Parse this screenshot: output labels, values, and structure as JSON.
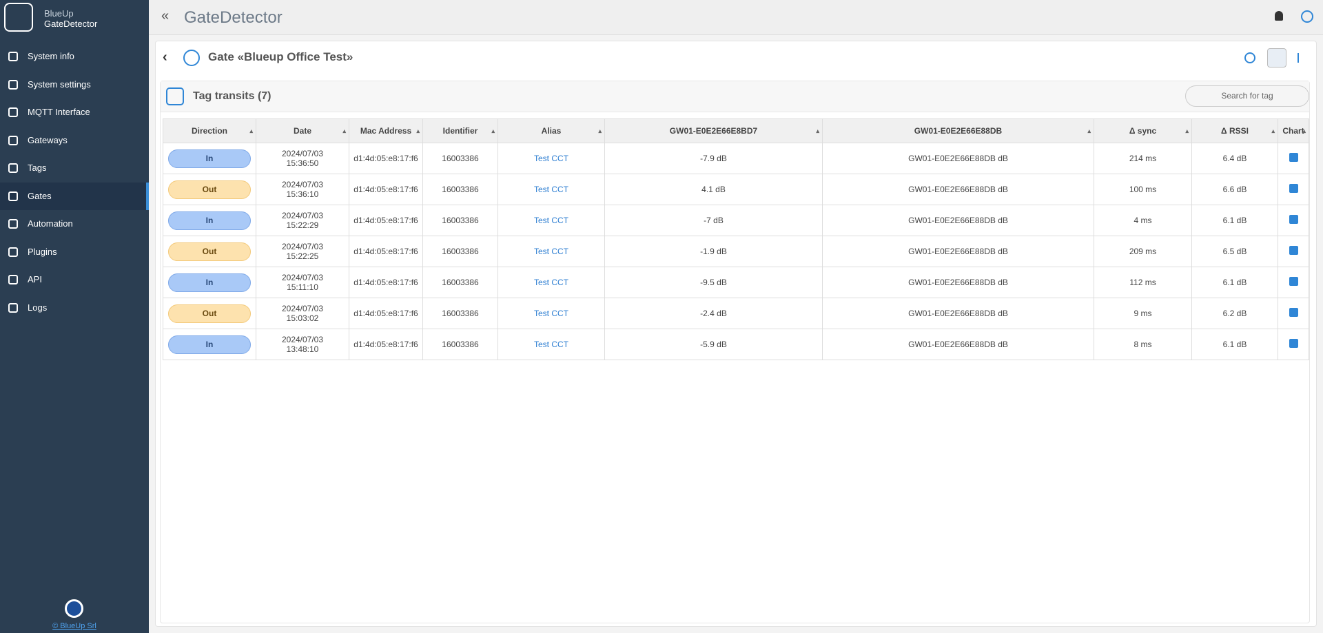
{
  "brand": {
    "line1": "BlueUp",
    "line2": "GateDetector"
  },
  "nav": [
    "System info",
    "System settings",
    "MQTT Interface",
    "Gateways",
    "Tags",
    "Gates",
    "Automation",
    "Plugins",
    "API",
    "Logs"
  ],
  "nav_active": 5,
  "header": {
    "title": "GateDetector"
  },
  "gate": {
    "title": "Gate «Blueup Office Test»"
  },
  "section": {
    "title": "Tag transits (7)",
    "search_placeholder": "Search for tag"
  },
  "table": {
    "columns": [
      "Direction",
      "Date",
      "Mac Address",
      "Identifier",
      "Alias",
      "GW01-E0E2E66E8BD7",
      "GW01-E0E2E66E88DB",
      "Δ sync",
      "Δ RSSI",
      "Chart"
    ],
    "rows": [
      [
        "In",
        "2024/07/03",
        "15:36:50",
        "d1:4d:05:e8:17:f6",
        "16003386",
        "Test CCT",
        "-7.9 dB",
        "GW01-E0E2E66E88DB dB",
        "214 ms",
        "6.4 dB"
      ],
      [
        "Out",
        "2024/07/03",
        "15:36:10",
        "d1:4d:05:e8:17:f6",
        "16003386",
        "Test CCT",
        "4.1 dB",
        "GW01-E0E2E66E88DB dB",
        "100 ms",
        "6.6 dB"
      ],
      [
        "In",
        "2024/07/03",
        "15:22:29",
        "d1:4d:05:e8:17:f6",
        "16003386",
        "Test CCT",
        "-7 dB",
        "GW01-E0E2E66E88DB dB",
        "4 ms",
        "6.1 dB"
      ],
      [
        "Out",
        "2024/07/03",
        "15:22:25",
        "d1:4d:05:e8:17:f6",
        "16003386",
        "Test CCT",
        "-1.9 dB",
        "GW01-E0E2E66E88DB dB",
        "209 ms",
        "6.5 dB"
      ],
      [
        "In",
        "2024/07/03",
        "15:11:10",
        "d1:4d:05:e8:17:f6",
        "16003386",
        "Test CCT",
        "-9.5 dB",
        "GW01-E0E2E66E88DB dB",
        "112 ms",
        "6.1 dB"
      ],
      [
        "Out",
        "2024/07/03",
        "15:03:02",
        "d1:4d:05:e8:17:f6",
        "16003386",
        "Test CCT",
        "-2.4 dB",
        "GW01-E0E2E66E88DB dB",
        "9 ms",
        "6.2 dB"
      ],
      [
        "In",
        "2024/07/03",
        "13:48:10",
        "d1:4d:05:e8:17:f6",
        "16003386",
        "Test CCT",
        "-5.9 dB",
        "GW01-E0E2E66E88DB dB",
        "8 ms",
        "6.1 dB"
      ]
    ]
  },
  "footer": {
    "link": "© BlueUp Srl"
  }
}
